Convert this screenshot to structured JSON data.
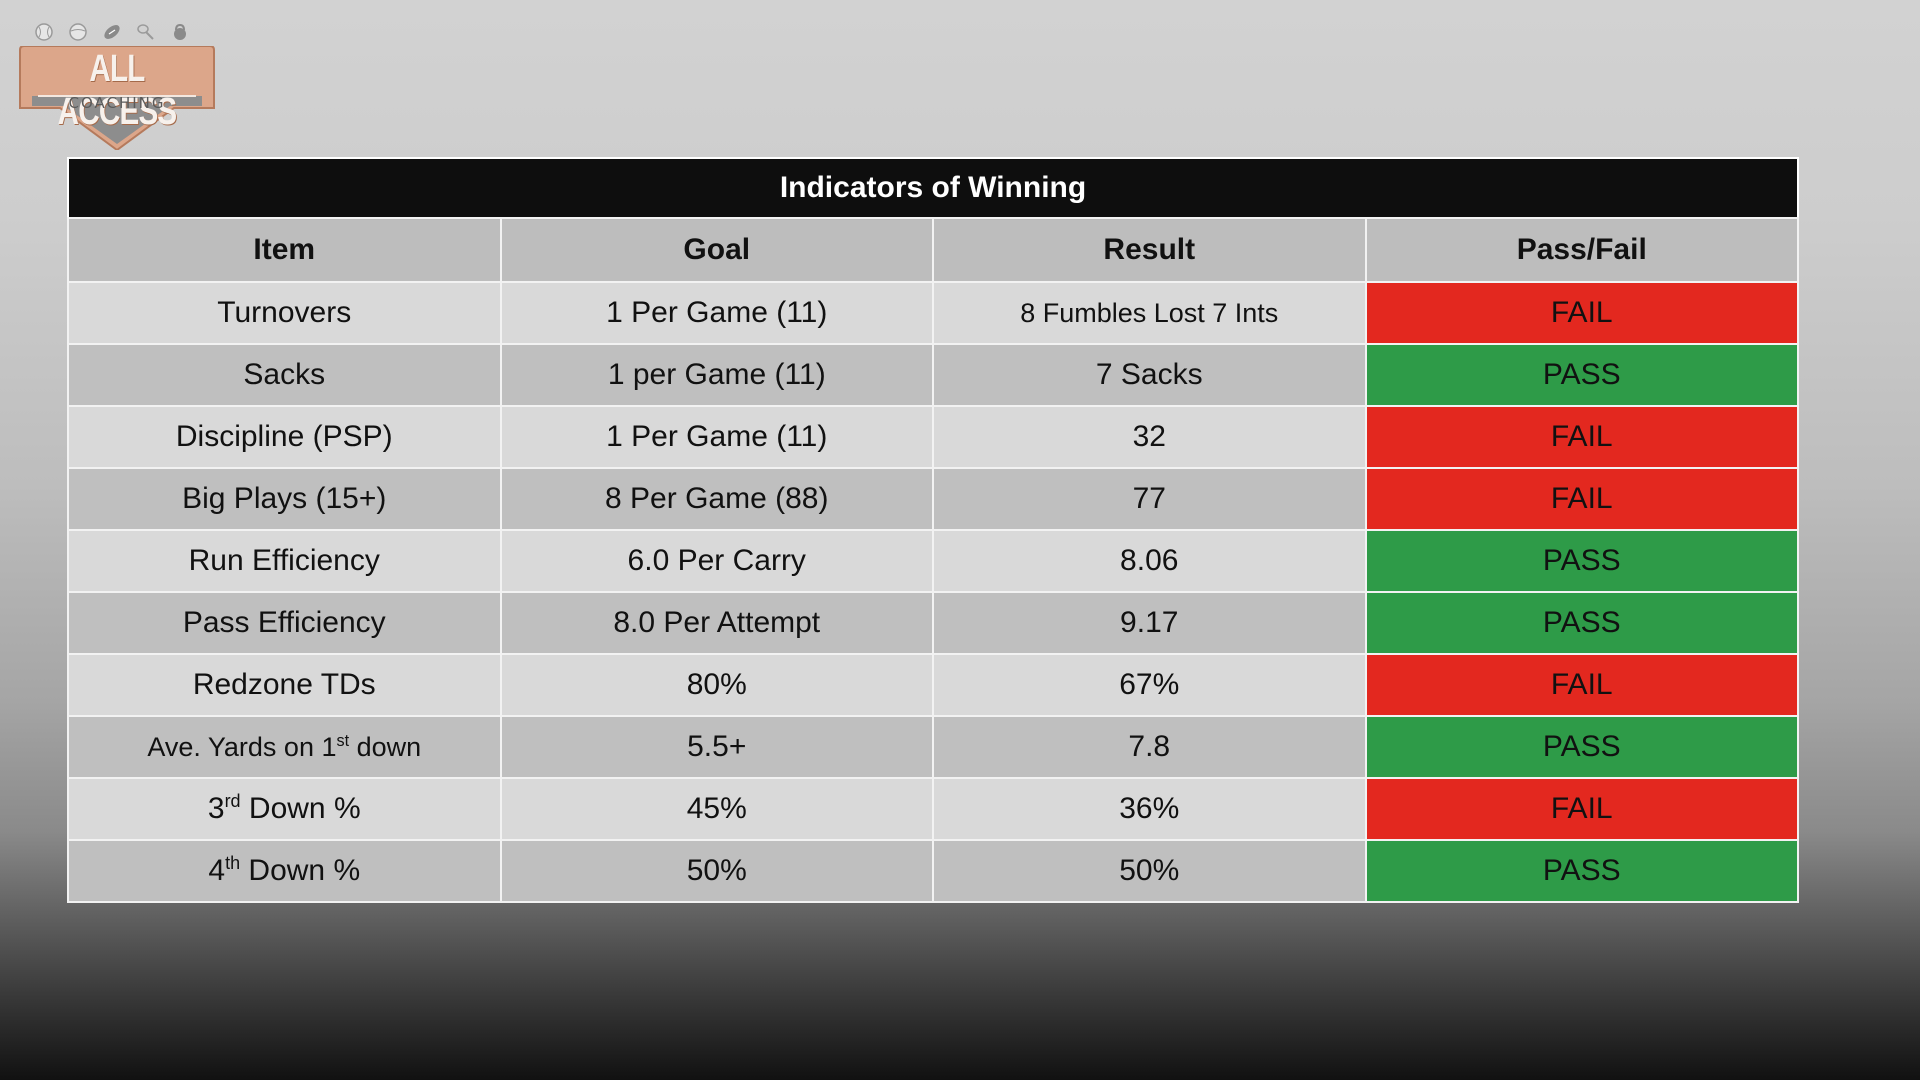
{
  "logo": {
    "text": "ALL ACCESS",
    "subtext": "COACHING",
    "icons": [
      "baseball-icon",
      "ball-icon",
      "football-icon",
      "lacrosse-icon",
      "kettlebell-icon"
    ],
    "colors": {
      "badge": "#d9a58a",
      "badge_dark": "#7c7c7c"
    }
  },
  "table": {
    "title": "Indicators of Winning",
    "headers": [
      "Item",
      "Goal",
      "Result",
      "Pass/Fail"
    ],
    "rows": [
      {
        "item": "Turnovers",
        "goal": "1 Per Game (11)",
        "result": "8 Fumbles Lost 7 Ints",
        "status": "FAIL"
      },
      {
        "item": "Sacks",
        "goal": "1 per Game (11)",
        "result": "7 Sacks",
        "status": "PASS"
      },
      {
        "item": "Discipline (PSP)",
        "goal": "1 Per Game (11)",
        "result": "32",
        "status": "FAIL"
      },
      {
        "item": "Big Plays (15+)",
        "goal": "8 Per Game (88)",
        "result": "77",
        "status": "FAIL"
      },
      {
        "item": "Run Efficiency",
        "goal": "6.0 Per Carry",
        "result": "8.06",
        "status": "PASS"
      },
      {
        "item": "Pass Efficiency",
        "goal": "8.0 Per Attempt",
        "result": "9.17",
        "status": "PASS"
      },
      {
        "item": "Redzone TDs",
        "goal": "80%",
        "result": "67%",
        "status": "FAIL"
      },
      {
        "item_pre": "Ave. Yards on 1",
        "item_sup": "st",
        "item_post": " down",
        "goal": "5.5+",
        "result": "7.8",
        "status": "PASS"
      },
      {
        "item_pre": "3",
        "item_sup": "rd",
        "item_post": " Down %",
        "goal": "45%",
        "result": "36%",
        "status": "FAIL"
      },
      {
        "item_pre": "4",
        "item_sup": "th",
        "item_post": " Down %",
        "goal": "50%",
        "result": "50%",
        "status": "PASS"
      }
    ],
    "colors": {
      "pass": "#2e9b48",
      "fail": "#e3281f",
      "header": "#bdbdbd",
      "title_bg": "#0e0e0e"
    }
  }
}
